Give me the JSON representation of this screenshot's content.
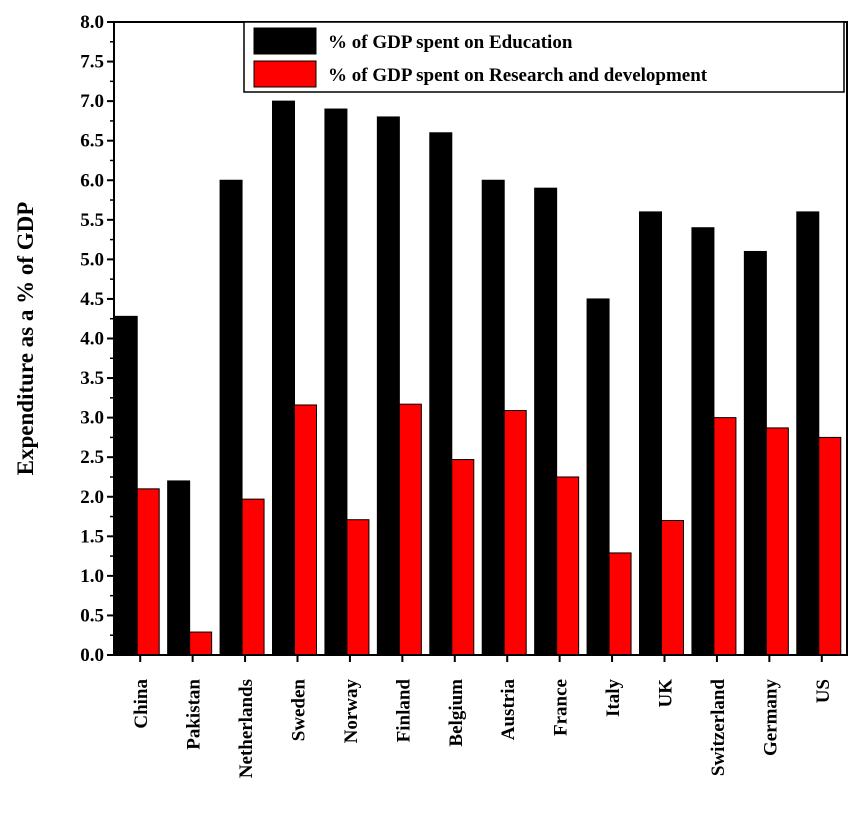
{
  "chart_data": {
    "type": "bar",
    "title": "",
    "xlabel": "",
    "ylabel": "Expenditure as a % of GDP",
    "ylim": [
      0.0,
      8.0
    ],
    "yticks": [
      "0.0",
      "0.5",
      "1.0",
      "1.5",
      "2.0",
      "2.5",
      "3.0",
      "3.5",
      "4.0",
      "4.5",
      "5.0",
      "5.5",
      "6.0",
      "6.5",
      "7.0",
      "7.5",
      "8.0"
    ],
    "categories": [
      "China",
      "Pakistan",
      "Netherlands",
      "Sweden",
      "Norway",
      "Finland",
      "Belgium",
      "Austria",
      "France",
      "Italy",
      "UK",
      "Switzerland",
      "Germany",
      "US"
    ],
    "series": [
      {
        "name": "% of GDP spent on Education",
        "color": "#000000",
        "values": [
          4.28,
          2.2,
          6.0,
          7.0,
          6.9,
          6.8,
          6.6,
          6.0,
          5.9,
          4.5,
          5.6,
          5.4,
          5.1,
          5.6
        ]
      },
      {
        "name": "% of GDP spent on Research and development",
        "color": "#ff0000",
        "values": [
          2.1,
          0.29,
          1.97,
          3.16,
          1.71,
          3.17,
          2.47,
          3.09,
          2.25,
          1.29,
          1.7,
          3.0,
          2.87,
          2.75
        ]
      }
    ],
    "legend_position": "top-right",
    "grid": false
  }
}
